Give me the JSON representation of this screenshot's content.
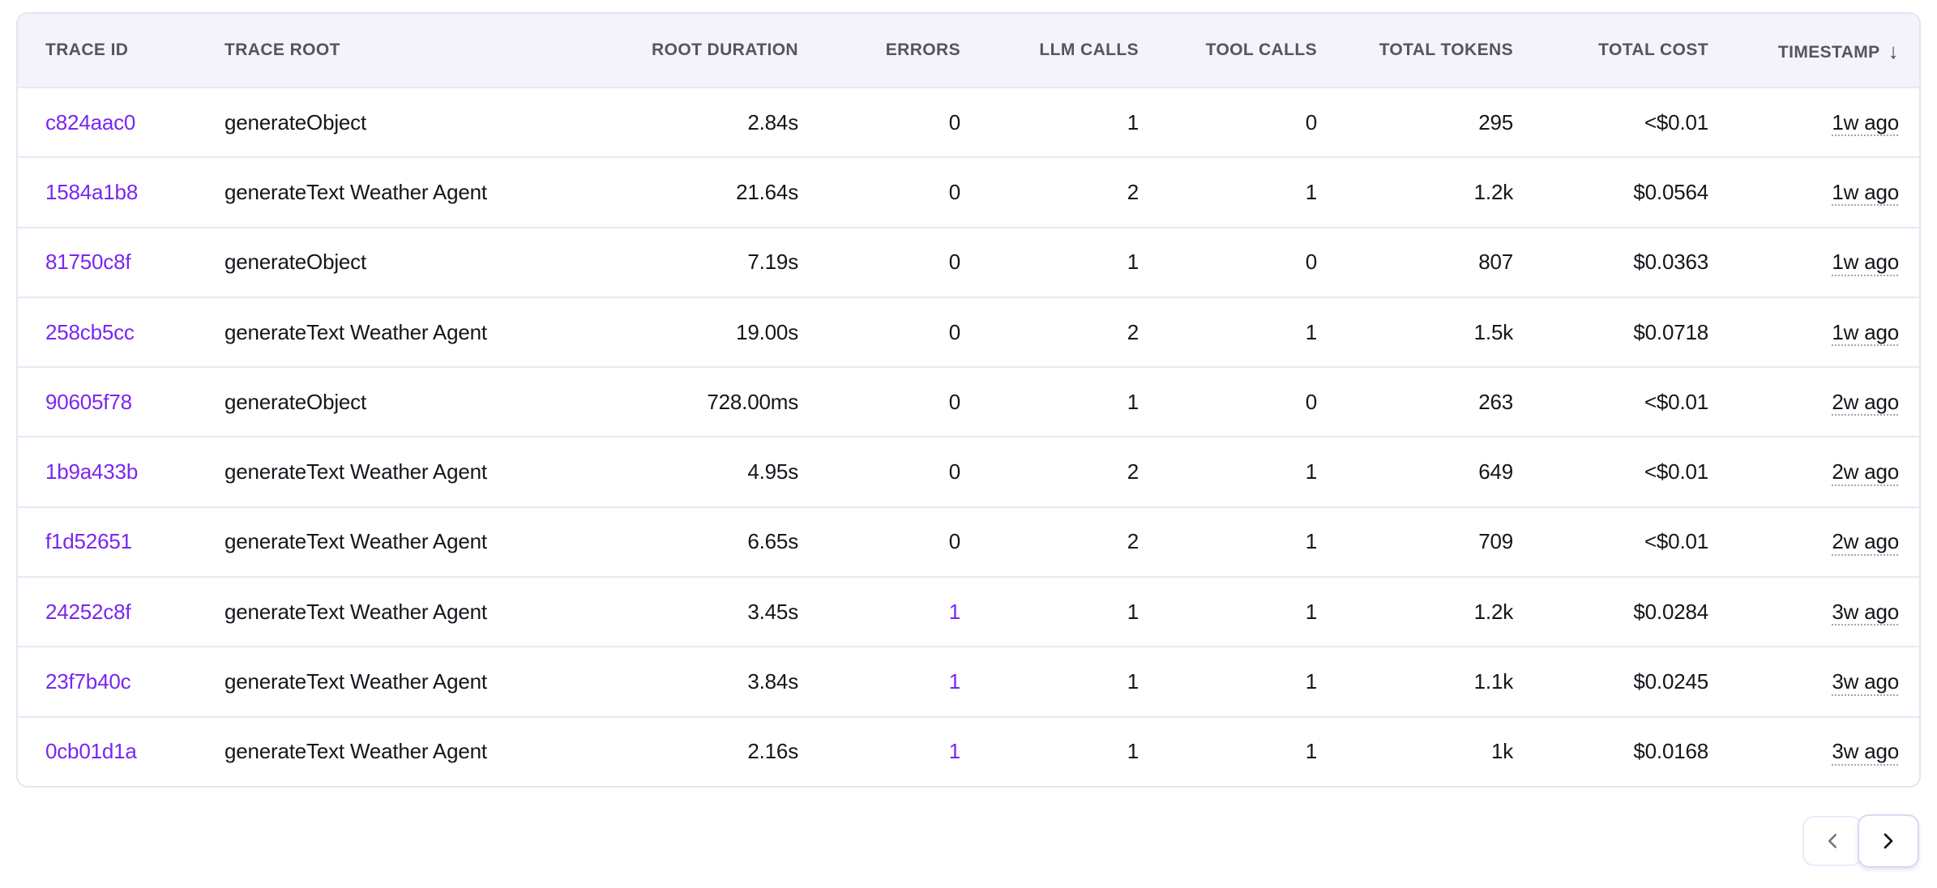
{
  "colors": {
    "accent_purple": "#7a26f0",
    "header_bg": "#f4f3fa",
    "header_text": "#55545f",
    "body_text": "#16151c",
    "row_divider": "#eae8f5",
    "table_border": "#e7e4f3"
  },
  "table": {
    "columns": [
      {
        "key": "trace_id",
        "label": "TRACE ID",
        "align": "left",
        "type": "link"
      },
      {
        "key": "trace_root",
        "label": "TRACE ROOT",
        "align": "left",
        "type": "text"
      },
      {
        "key": "root_duration",
        "label": "ROOT DURATION",
        "align": "right",
        "type": "text"
      },
      {
        "key": "errors",
        "label": "ERRORS",
        "align": "right",
        "type": "errors"
      },
      {
        "key": "llm_calls",
        "label": "LLM CALLS",
        "align": "right",
        "type": "text"
      },
      {
        "key": "tool_calls",
        "label": "TOOL CALLS",
        "align": "right",
        "type": "text"
      },
      {
        "key": "total_tokens",
        "label": "TOTAL TOKENS",
        "align": "right",
        "type": "text"
      },
      {
        "key": "total_cost",
        "label": "TOTAL COST",
        "align": "right",
        "type": "text"
      },
      {
        "key": "timestamp",
        "label": "TIMESTAMP",
        "align": "right",
        "type": "timestamp",
        "sort": "desc",
        "sort_indicator": "↓"
      }
    ],
    "rows": [
      {
        "trace_id": "c824aac0",
        "trace_root": "generateObject",
        "root_duration": "2.84s",
        "errors": "0",
        "errors_highlight": false,
        "llm_calls": "1",
        "tool_calls": "0",
        "total_tokens": "295",
        "total_cost": "<$0.01",
        "timestamp": "1w ago"
      },
      {
        "trace_id": "1584a1b8",
        "trace_root": "generateText Weather Agent",
        "root_duration": "21.64s",
        "errors": "0",
        "errors_highlight": false,
        "llm_calls": "2",
        "tool_calls": "1",
        "total_tokens": "1.2k",
        "total_cost": "$0.0564",
        "timestamp": "1w ago"
      },
      {
        "trace_id": "81750c8f",
        "trace_root": "generateObject",
        "root_duration": "7.19s",
        "errors": "0",
        "errors_highlight": false,
        "llm_calls": "1",
        "tool_calls": "0",
        "total_tokens": "807",
        "total_cost": "$0.0363",
        "timestamp": "1w ago"
      },
      {
        "trace_id": "258cb5cc",
        "trace_root": "generateText Weather Agent",
        "root_duration": "19.00s",
        "errors": "0",
        "errors_highlight": false,
        "llm_calls": "2",
        "tool_calls": "1",
        "total_tokens": "1.5k",
        "total_cost": "$0.0718",
        "timestamp": "1w ago"
      },
      {
        "trace_id": "90605f78",
        "trace_root": "generateObject",
        "root_duration": "728.00ms",
        "errors": "0",
        "errors_highlight": false,
        "llm_calls": "1",
        "tool_calls": "0",
        "total_tokens": "263",
        "total_cost": "<$0.01",
        "timestamp": "2w ago"
      },
      {
        "trace_id": "1b9a433b",
        "trace_root": "generateText Weather Agent",
        "root_duration": "4.95s",
        "errors": "0",
        "errors_highlight": false,
        "llm_calls": "2",
        "tool_calls": "1",
        "total_tokens": "649",
        "total_cost": "<$0.01",
        "timestamp": "2w ago"
      },
      {
        "trace_id": "f1d52651",
        "trace_root": "generateText Weather Agent",
        "root_duration": "6.65s",
        "errors": "0",
        "errors_highlight": false,
        "llm_calls": "2",
        "tool_calls": "1",
        "total_tokens": "709",
        "total_cost": "<$0.01",
        "timestamp": "2w ago"
      },
      {
        "trace_id": "24252c8f",
        "trace_root": "generateText Weather Agent",
        "root_duration": "3.45s",
        "errors": "1",
        "errors_highlight": true,
        "llm_calls": "1",
        "tool_calls": "1",
        "total_tokens": "1.2k",
        "total_cost": "$0.0284",
        "timestamp": "3w ago"
      },
      {
        "trace_id": "23f7b40c",
        "trace_root": "generateText Weather Agent",
        "root_duration": "3.84s",
        "errors": "1",
        "errors_highlight": true,
        "llm_calls": "1",
        "tool_calls": "1",
        "total_tokens": "1.1k",
        "total_cost": "$0.0245",
        "timestamp": "3w ago"
      },
      {
        "trace_id": "0cb01d1a",
        "trace_root": "generateText Weather Agent",
        "root_duration": "2.16s",
        "errors": "1",
        "errors_highlight": true,
        "llm_calls": "1",
        "tool_calls": "1",
        "total_tokens": "1k",
        "total_cost": "$0.0168",
        "timestamp": "3w ago"
      }
    ]
  },
  "pagination": {
    "prev": {
      "icon": "chevron-left-icon",
      "enabled": false
    },
    "next": {
      "icon": "chevron-right-icon",
      "enabled": true
    }
  }
}
